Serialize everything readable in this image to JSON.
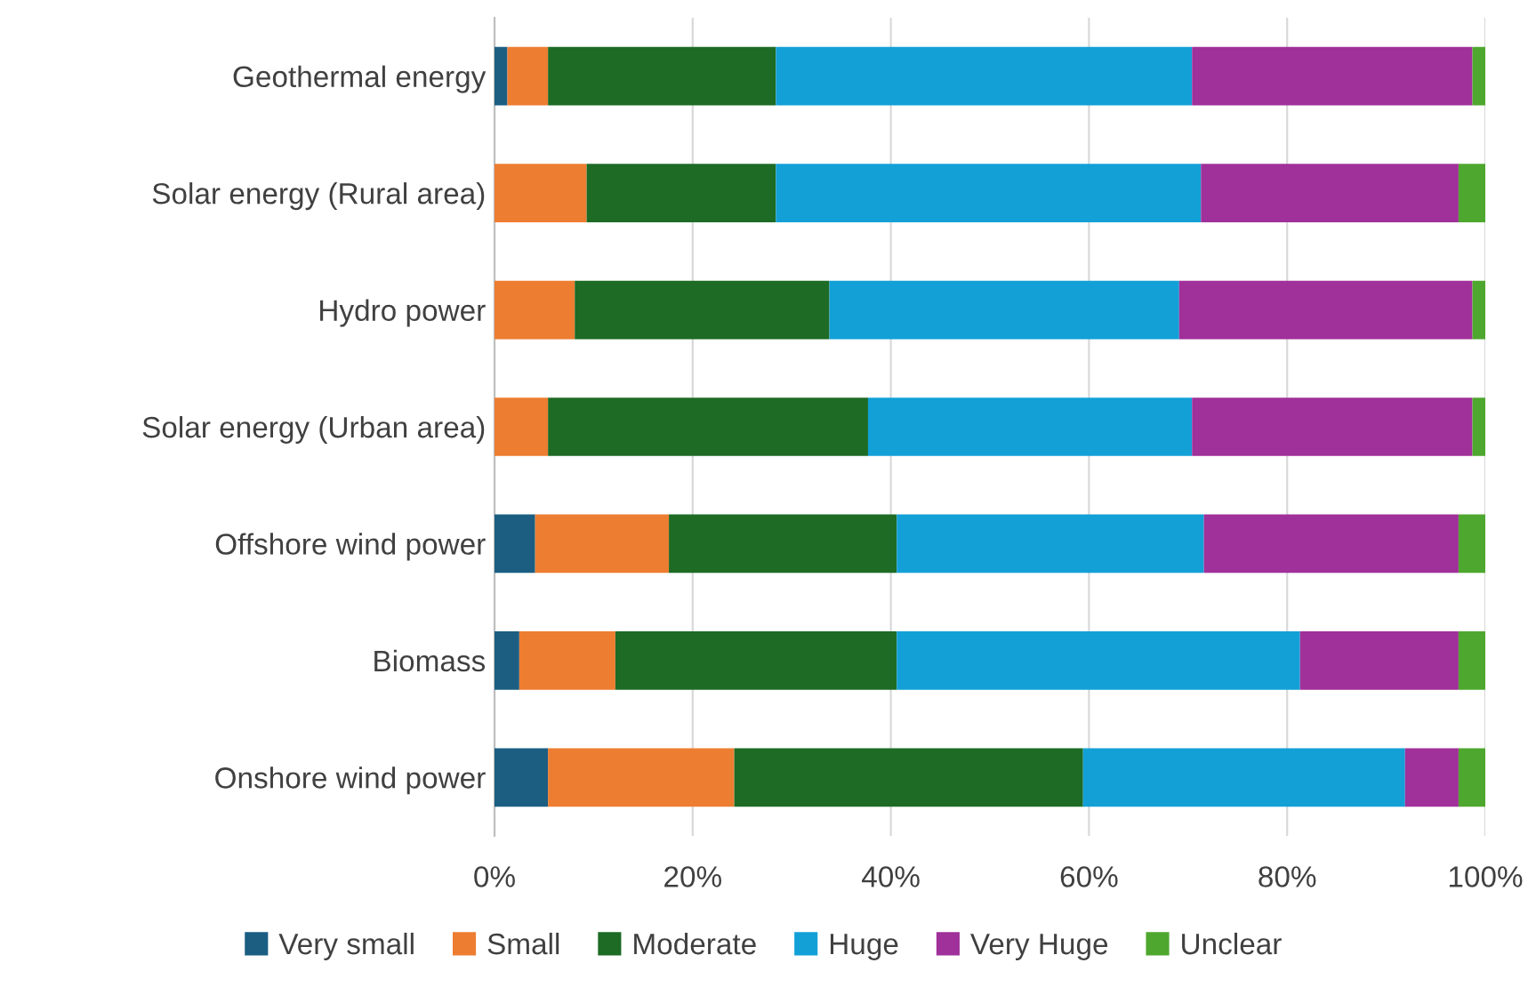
{
  "chart_data": {
    "type": "bar",
    "orientation": "horizontal",
    "stacked": true,
    "categories": [
      "Geothermal energy",
      "Solar energy (Rural area)",
      "Hydro power",
      "Solar energy (Urban area)",
      "Offshore wind power",
      "Biomass",
      "Onshore wind power"
    ],
    "series": [
      {
        "name": "Very small",
        "color": "#1b5e82",
        "values": [
          1.3,
          0,
          0,
          0,
          4.1,
          2.5,
          5.4
        ]
      },
      {
        "name": "Small",
        "color": "#ed7d31",
        "values": [
          4.1,
          9.3,
          8.1,
          5.4,
          13.5,
          9.7,
          18.8
        ]
      },
      {
        "name": "Moderate",
        "color": "#1d6b25",
        "values": [
          23.0,
          19.1,
          25.7,
          32.3,
          23.0,
          28.4,
          35.2
        ]
      },
      {
        "name": "Huge",
        "color": "#12a0d7",
        "values": [
          42.0,
          42.9,
          35.3,
          32.7,
          31.0,
          40.7,
          32.5
        ]
      },
      {
        "name": "Very Huge",
        "color": "#a0309a",
        "values": [
          28.3,
          26.0,
          29.6,
          28.3,
          25.7,
          16.0,
          5.4
        ]
      },
      {
        "name": "Unclear",
        "color": "#4ea72e",
        "values": [
          1.3,
          2.7,
          1.3,
          1.3,
          2.7,
          2.7,
          2.7
        ]
      }
    ],
    "xlim": [
      0,
      100
    ],
    "xticks": [
      {
        "value": 0,
        "label": "0%"
      },
      {
        "value": 20,
        "label": "20%"
      },
      {
        "value": 40,
        "label": "40%"
      },
      {
        "value": 60,
        "label": "60%"
      },
      {
        "value": 80,
        "label": "80%"
      },
      {
        "value": 100,
        "label": "100%"
      }
    ],
    "grid": "x",
    "legend": "bottom"
  }
}
